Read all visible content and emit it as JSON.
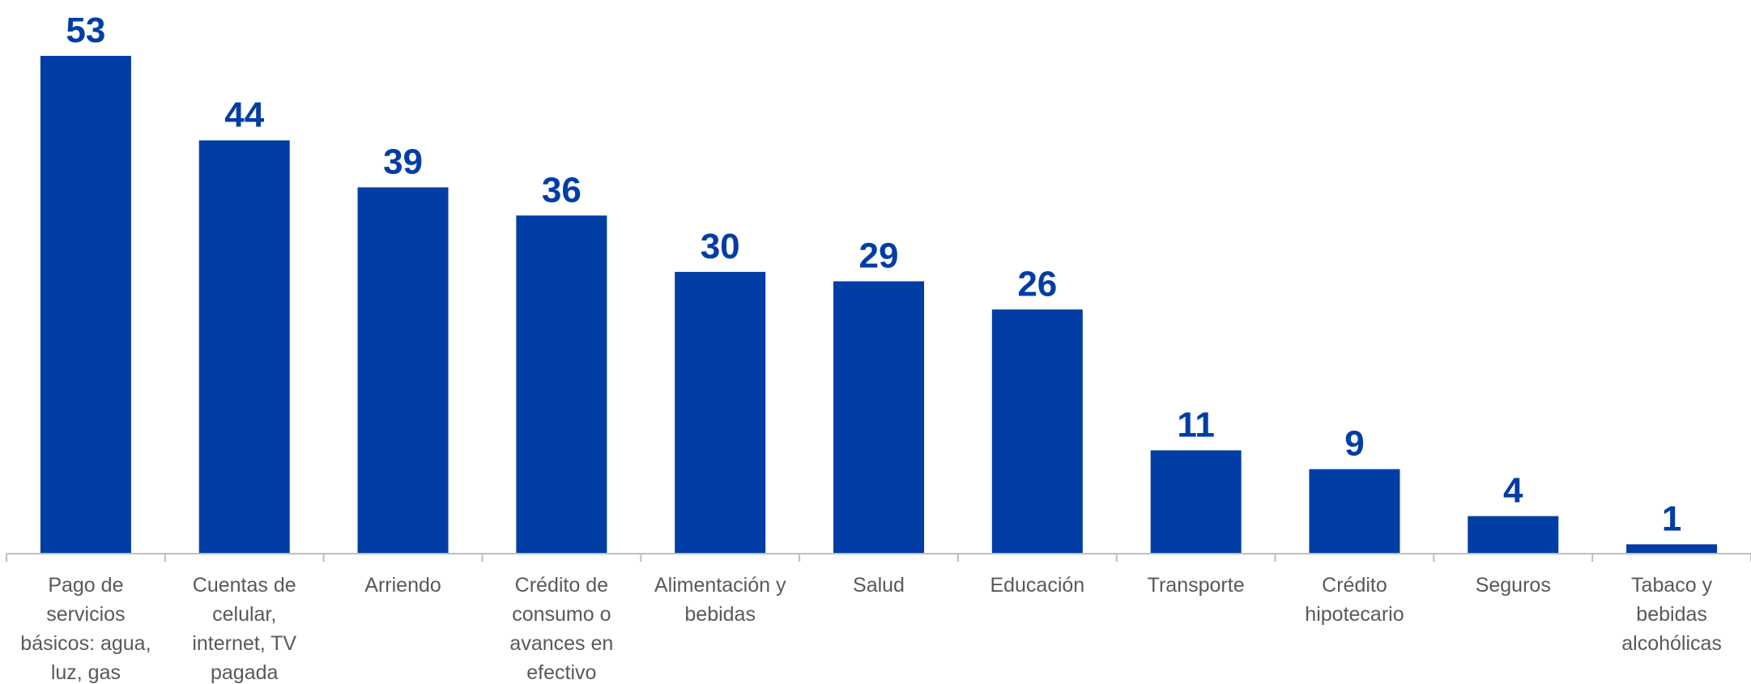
{
  "chart_data": {
    "type": "bar",
    "categories": [
      "Pago de servicios básicos: agua, luz, gas",
      "Cuentas de celular, internet, TV pagada",
      "Arriendo",
      "Crédito de consumo o avances en efectivo",
      "Alimentación y bebidas",
      "Salud",
      "Educación",
      "Transporte",
      "Crédito hipotecario",
      "Seguros",
      "Tabaco y bebidas alcohólicas"
    ],
    "category_lines": [
      [
        "Pago de",
        "servicios",
        "básicos: agua,",
        "luz, gas"
      ],
      [
        "Cuentas de",
        "celular,",
        "internet, TV",
        "pagada"
      ],
      [
        "Arriendo"
      ],
      [
        "Crédito de",
        "consumo o",
        "avances en",
        "efectivo"
      ],
      [
        "Alimentación y",
        "bebidas"
      ],
      [
        "Salud"
      ],
      [
        "Educación"
      ],
      [
        "Transporte"
      ],
      [
        "Crédito",
        "hipotecario"
      ],
      [
        "Seguros"
      ],
      [
        "Tabaco y",
        "bebidas",
        "alcohólicas"
      ]
    ],
    "values": [
      53,
      44,
      39,
      36,
      30,
      29,
      26,
      11,
      9,
      4,
      1
    ],
    "ylim": [
      0,
      53
    ],
    "grid": false,
    "data_labels": true,
    "title": "",
    "xlabel": "",
    "ylabel": ""
  },
  "colors": {
    "bar": "#003da5",
    "value_label": "#003da5",
    "axis": "#bfbfbf",
    "category_label": "#595959"
  }
}
